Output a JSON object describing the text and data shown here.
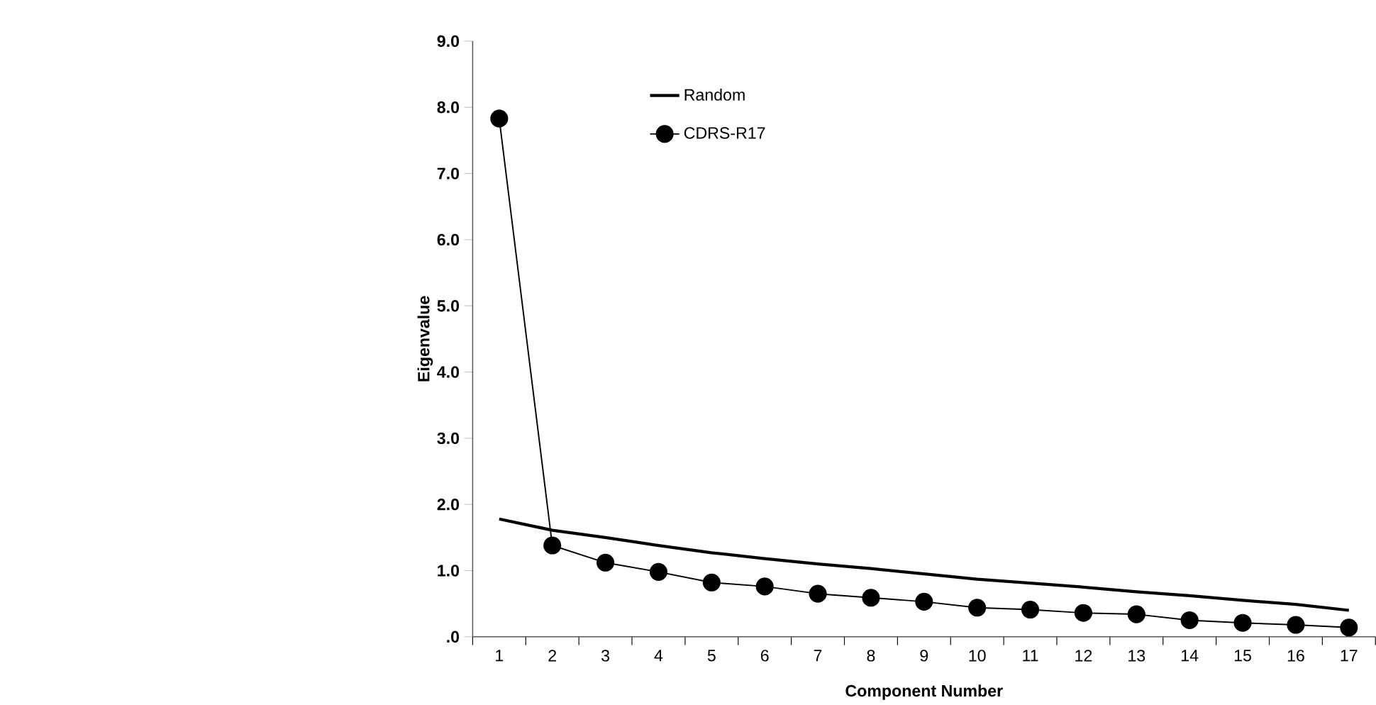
{
  "chart_data": {
    "type": "line",
    "xlabel": "Component Number",
    "ylabel": "Eigenvalue",
    "categories": [
      "1",
      "2",
      "3",
      "4",
      "5",
      "6",
      "7",
      "8",
      "9",
      "10",
      "11",
      "12",
      "13",
      "14",
      "15",
      "16",
      "17"
    ],
    "ylim": [
      0,
      9
    ],
    "yticks": [
      {
        "value": 0,
        "label": ".0"
      },
      {
        "value": 1,
        "label": "1.0"
      },
      {
        "value": 2,
        "label": "2.0"
      },
      {
        "value": 3,
        "label": "3.0"
      },
      {
        "value": 4,
        "label": "4.0"
      },
      {
        "value": 5,
        "label": "5.0"
      },
      {
        "value": 6,
        "label": "6.0"
      },
      {
        "value": 7,
        "label": "7.0"
      },
      {
        "value": 8,
        "label": "8.0"
      },
      {
        "value": 9,
        "label": "9.0"
      }
    ],
    "grid": false,
    "legend": "top left",
    "series": [
      {
        "name": "Random",
        "color": "#000000",
        "marker": "none",
        "values": [
          1.78,
          1.61,
          1.5,
          1.38,
          1.27,
          1.18,
          1.1,
          1.03,
          0.95,
          0.87,
          0.81,
          0.75,
          0.68,
          0.62,
          0.55,
          0.49,
          0.4
        ]
      },
      {
        "name": "CDRS-R17",
        "color": "#000000",
        "marker": "circle",
        "values": [
          7.83,
          1.38,
          1.12,
          0.98,
          0.82,
          0.76,
          0.65,
          0.59,
          0.53,
          0.44,
          0.41,
          0.36,
          0.34,
          0.25,
          0.21,
          0.18,
          0.14
        ]
      }
    ]
  }
}
